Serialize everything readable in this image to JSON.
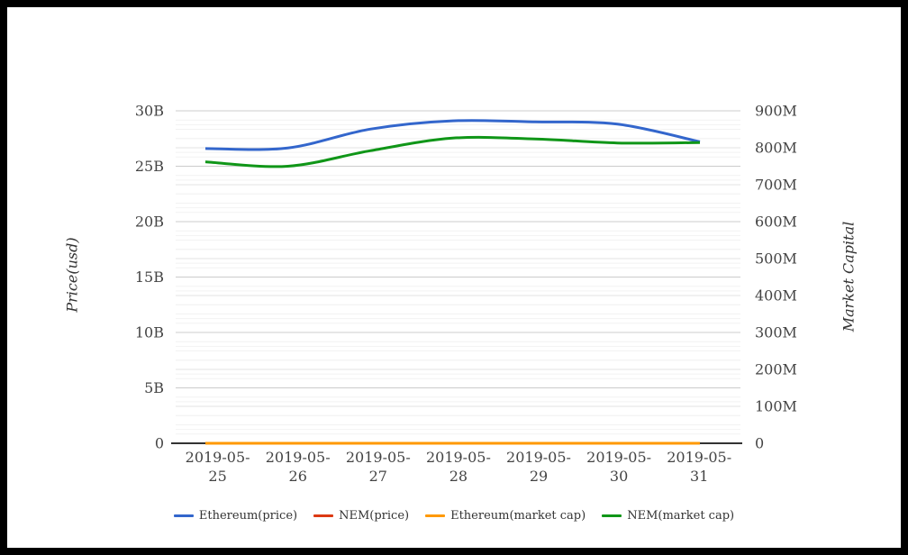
{
  "chart_data": {
    "type": "line",
    "title": "",
    "categories": [
      "2019-05-25",
      "2019-05-26",
      "2019-05-27",
      "2019-05-28",
      "2019-05-29",
      "2019-05-30",
      "2019-05-31"
    ],
    "axes": {
      "left": {
        "title": "Price(usd)",
        "unit": "B",
        "max": 30,
        "ticks": [
          "0",
          "5B",
          "10B",
          "15B",
          "20B",
          "25B",
          "30B"
        ]
      },
      "right": {
        "title": "Market Capital",
        "unit": "M",
        "max": 900,
        "ticks": [
          "0",
          "100M",
          "200M",
          "300M",
          "400M",
          "500M",
          "600M",
          "700M",
          "800M",
          "900M"
        ]
      }
    },
    "series": [
      {
        "name": "Ethereum(price)",
        "color": "#3366cc",
        "axis": "left",
        "values": [
          26.6,
          26.65,
          28.35,
          29.1,
          29.0,
          28.8,
          27.2
        ]
      },
      {
        "name": "NEM(price)",
        "color": "#dc3912",
        "axis": "left",
        "values": [
          0,
          0,
          0,
          0,
          0,
          0,
          0
        ]
      },
      {
        "name": "Ethereum(market cap)",
        "color": "#ff9900",
        "axis": "right",
        "values": [
          0,
          0,
          0,
          0,
          0,
          0,
          0
        ]
      },
      {
        "name": "NEM(market cap)",
        "color": "#109618",
        "axis": "right",
        "values": [
          762,
          750,
          792,
          826,
          824,
          813,
          814
        ]
      }
    ],
    "legend_position": "bottom",
    "grid": "on",
    "colors": {
      "axis_text": "#444444",
      "baseline": "#333333",
      "gridline_major": "#cccccc",
      "gridline_secondary": "#e3e3e3",
      "gridline_minor": "#f2f2f2",
      "background": "#ffffff",
      "frame": "#000000"
    }
  }
}
